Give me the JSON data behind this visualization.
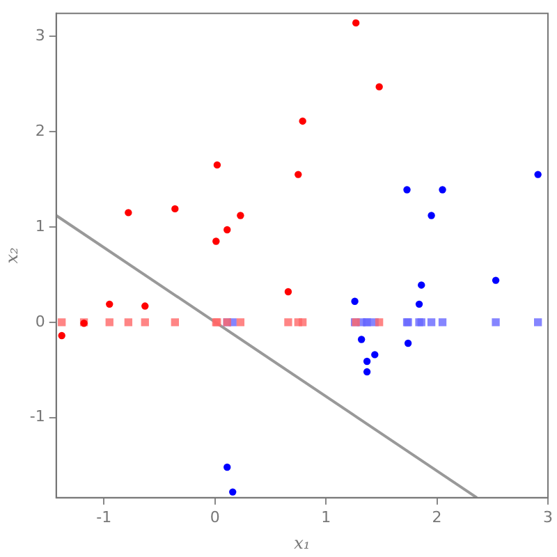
{
  "chart_data": {
    "type": "scatter",
    "xlabel": "x₁",
    "ylabel": "x₂",
    "xlim": [
      -1.43,
      3.0
    ],
    "ylim": [
      -1.84,
      3.24
    ],
    "xticks": [
      -1,
      0,
      1,
      2,
      3
    ],
    "yticks": [
      -1,
      0,
      1,
      2,
      3
    ],
    "grid": false,
    "legend": false,
    "marker": "circle",
    "series": [
      {
        "color": "#ff0000",
        "x": [
          -0.78,
          -0.36,
          0.02,
          0.01,
          0.11,
          0.23,
          0.75,
          0.79,
          1.27,
          1.48,
          -1.38,
          -1.18,
          -0.95,
          -0.63,
          0.66
        ],
        "values": [
          1.15,
          1.19,
          1.65,
          0.85,
          0.97,
          1.12,
          1.55,
          2.11,
          3.14,
          2.47,
          -0.14,
          -0.01,
          0.19,
          0.17,
          0.32
        ]
      },
      {
        "color": "#0000ff",
        "x": [
          1.73,
          2.05,
          1.95,
          2.91,
          1.26,
          1.86,
          1.84,
          2.53,
          1.32,
          1.74,
          1.44,
          1.37,
          1.37,
          0.11,
          0.16
        ],
        "values": [
          1.39,
          1.39,
          1.12,
          1.55,
          0.22,
          0.39,
          0.19,
          0.44,
          -0.18,
          -0.22,
          -0.34,
          -0.41,
          -0.52,
          -1.52,
          -1.78
        ]
      },
      {
        "color": "#ff6666",
        "marker": "square",
        "x": [
          -1.38,
          -1.18,
          -0.95,
          -0.78,
          -0.63,
          -0.36,
          0.01,
          0.02,
          0.11,
          0.23,
          0.66,
          0.75,
          0.79,
          1.27,
          1.48
        ],
        "values": [
          0,
          0,
          0,
          0,
          0,
          0,
          0,
          0,
          0,
          0,
          0,
          0,
          0,
          0,
          0
        ]
      },
      {
        "color": "#6666ff",
        "marker": "square",
        "x": [
          0.11,
          0.16,
          1.26,
          1.32,
          1.37,
          1.37,
          1.44,
          1.73,
          1.74,
          1.84,
          1.86,
          1.95,
          2.05,
          2.53,
          2.91
        ],
        "values": [
          0,
          0,
          0,
          0,
          0,
          0,
          0,
          0,
          0,
          0,
          0,
          0,
          0,
          0,
          0
        ]
      },
      {
        "type": "line",
        "color": "#999999",
        "marker": "none",
        "line_style": "solid",
        "x": [
          -1.43,
          2.36
        ],
        "values": [
          1.12,
          -1.84
        ]
      }
    ]
  }
}
